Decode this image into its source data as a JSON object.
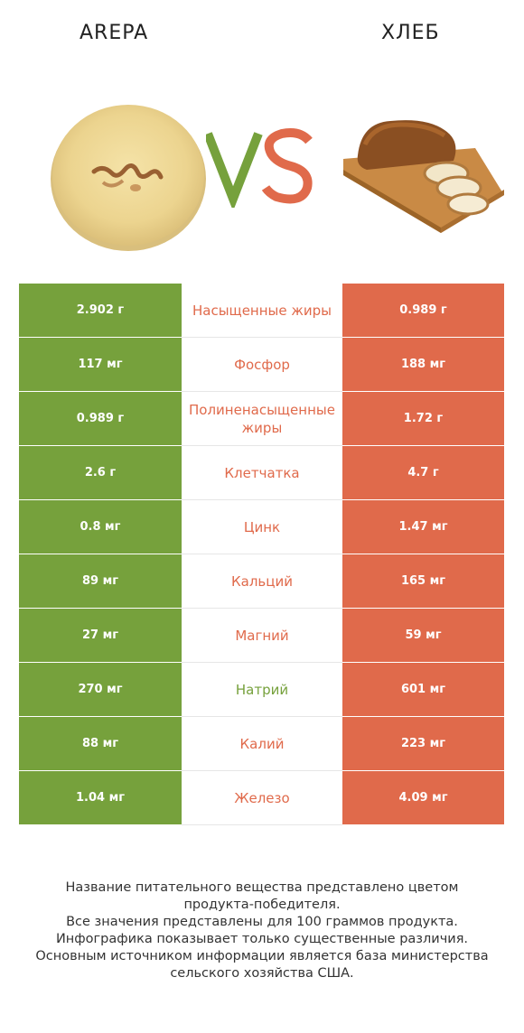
{
  "header": {
    "left_title": "AREPA",
    "right_title": "ХЛЕБ",
    "vs_text": "VS",
    "vs_colors": {
      "v": "#76a13c",
      "s": "#e06a4b"
    }
  },
  "colors": {
    "green": "#76a13c",
    "orange": "#e06a4b"
  },
  "rows": [
    {
      "left": "2.902 г",
      "nutrient": "Насыщенные жиры",
      "right": "0.989 г",
      "winner": "orange"
    },
    {
      "left": "117 мг",
      "nutrient": "Фосфор",
      "right": "188 мг",
      "winner": "orange"
    },
    {
      "left": "0.989 г",
      "nutrient": "Полиненасыщенные жиры",
      "right": "1.72 г",
      "winner": "orange"
    },
    {
      "left": "2.6 г",
      "nutrient": "Клетчатка",
      "right": "4.7 г",
      "winner": "orange"
    },
    {
      "left": "0.8 мг",
      "nutrient": "Цинк",
      "right": "1.47 мг",
      "winner": "orange"
    },
    {
      "left": "89 мг",
      "nutrient": "Кальций",
      "right": "165 мг",
      "winner": "orange"
    },
    {
      "left": "27 мг",
      "nutrient": "Магний",
      "right": "59 мг",
      "winner": "orange"
    },
    {
      "left": "270 мг",
      "nutrient": "Натрий",
      "right": "601 мг",
      "winner": "green"
    },
    {
      "left": "88 мг",
      "nutrient": "Калий",
      "right": "223 мг",
      "winner": "orange"
    },
    {
      "left": "1.04 мг",
      "nutrient": "Железо",
      "right": "4.09 мг",
      "winner": "orange"
    }
  ],
  "footer": {
    "lines": [
      "Название питательного вещества представлено цветом",
      "продукта-победителя.",
      "Все значения представлены для 100 граммов продукта.",
      "Инфографика показывает только существенные различия.",
      "Основным источником информации является база министерства",
      "сельского хозяйства США."
    ]
  }
}
